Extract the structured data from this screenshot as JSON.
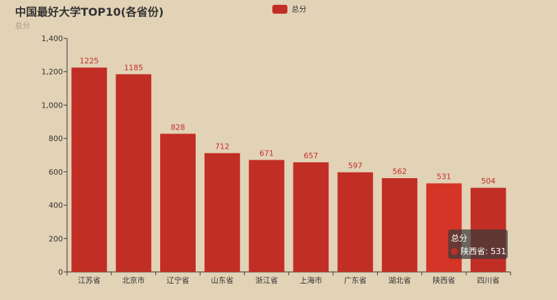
{
  "title": "中国最好大学TOP10(各省份)",
  "subtitle": "总分",
  "legend": {
    "label": "总分",
    "color": "#c12e25"
  },
  "tooltip": {
    "title": "总分",
    "item": "陕西省: 531"
  },
  "chart_data": {
    "type": "bar",
    "categories": [
      "江苏省",
      "北京市",
      "辽宁省",
      "山东省",
      "浙江省",
      "上海市",
      "广东省",
      "湖北省",
      "陕西省",
      "四川省"
    ],
    "series": [
      {
        "name": "总分",
        "values": [
          1225,
          1185,
          828,
          712,
          671,
          657,
          597,
          562,
          531,
          504
        ]
      }
    ],
    "ylim": [
      0,
      1400
    ],
    "yticks": [
      0,
      200,
      400,
      600,
      800,
      1000,
      1200,
      1400
    ],
    "ytick_labels": [
      "0",
      "200",
      "400",
      "600",
      "800",
      "1,000",
      "1,200",
      "1,400"
    ],
    "highlighted_category": "陕西省",
    "colors": {
      "bar": "#c12e25",
      "bar_highlight": "#d43527"
    },
    "grid": false,
    "legend_position": "top-center"
  }
}
